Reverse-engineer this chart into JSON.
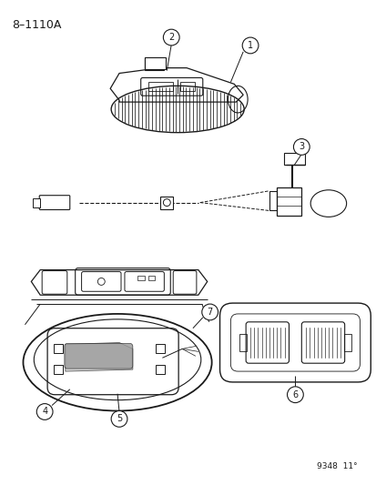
{
  "bg_color": "#ffffff",
  "line_color": "#1a1a1a",
  "title": "8–1110A",
  "footer": "9348  11°"
}
